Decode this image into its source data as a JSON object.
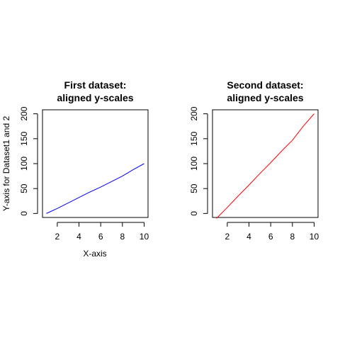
{
  "chart_data": [
    {
      "type": "line",
      "title_lines": [
        "First dataset:",
        "aligned y-scales"
      ],
      "xlabel": "X-axis",
      "ylabel": "Y-axis for Dataset1 and 2",
      "xlim": [
        0.64,
        10.36
      ],
      "ylim": [
        -8,
        208
      ],
      "x_ticks": [
        2,
        4,
        6,
        8,
        10
      ],
      "y_ticks": [
        0,
        50,
        100,
        150,
        200
      ],
      "x_tick_labels": [
        "2",
        "4",
        "6",
        "8",
        "10"
      ],
      "y_tick_labels": [
        "0",
        "50",
        "100",
        "150",
        "200"
      ],
      "series": [
        {
          "color": "#0000ff",
          "x": [
            1,
            2,
            3,
            4,
            5,
            6,
            7,
            8,
            9,
            10
          ],
          "y": [
            0,
            10,
            21,
            32,
            43,
            53,
            64,
            75,
            88,
            100
          ]
        }
      ]
    },
    {
      "type": "line",
      "title_lines": [
        "Second dataset:",
        "aligned y-scales"
      ],
      "xlabel": "",
      "ylabel": "",
      "xlim": [
        0.64,
        10.36
      ],
      "ylim": [
        -8,
        208
      ],
      "x_ticks": [
        2,
        4,
        6,
        8,
        10
      ],
      "y_ticks": [
        0,
        50,
        100,
        150,
        200
      ],
      "x_tick_labels": [
        "2",
        "4",
        "6",
        "8",
        "10"
      ],
      "y_tick_labels": [
        "0",
        "50",
        "100",
        "150",
        "200"
      ],
      "series": [
        {
          "color": "#ff0000",
          "x": [
            1,
            2,
            3,
            4,
            5,
            6,
            7,
            8,
            9,
            10
          ],
          "y": [
            -10,
            12,
            35,
            57,
            80,
            102,
            125,
            147,
            175,
            200
          ]
        }
      ]
    }
  ]
}
